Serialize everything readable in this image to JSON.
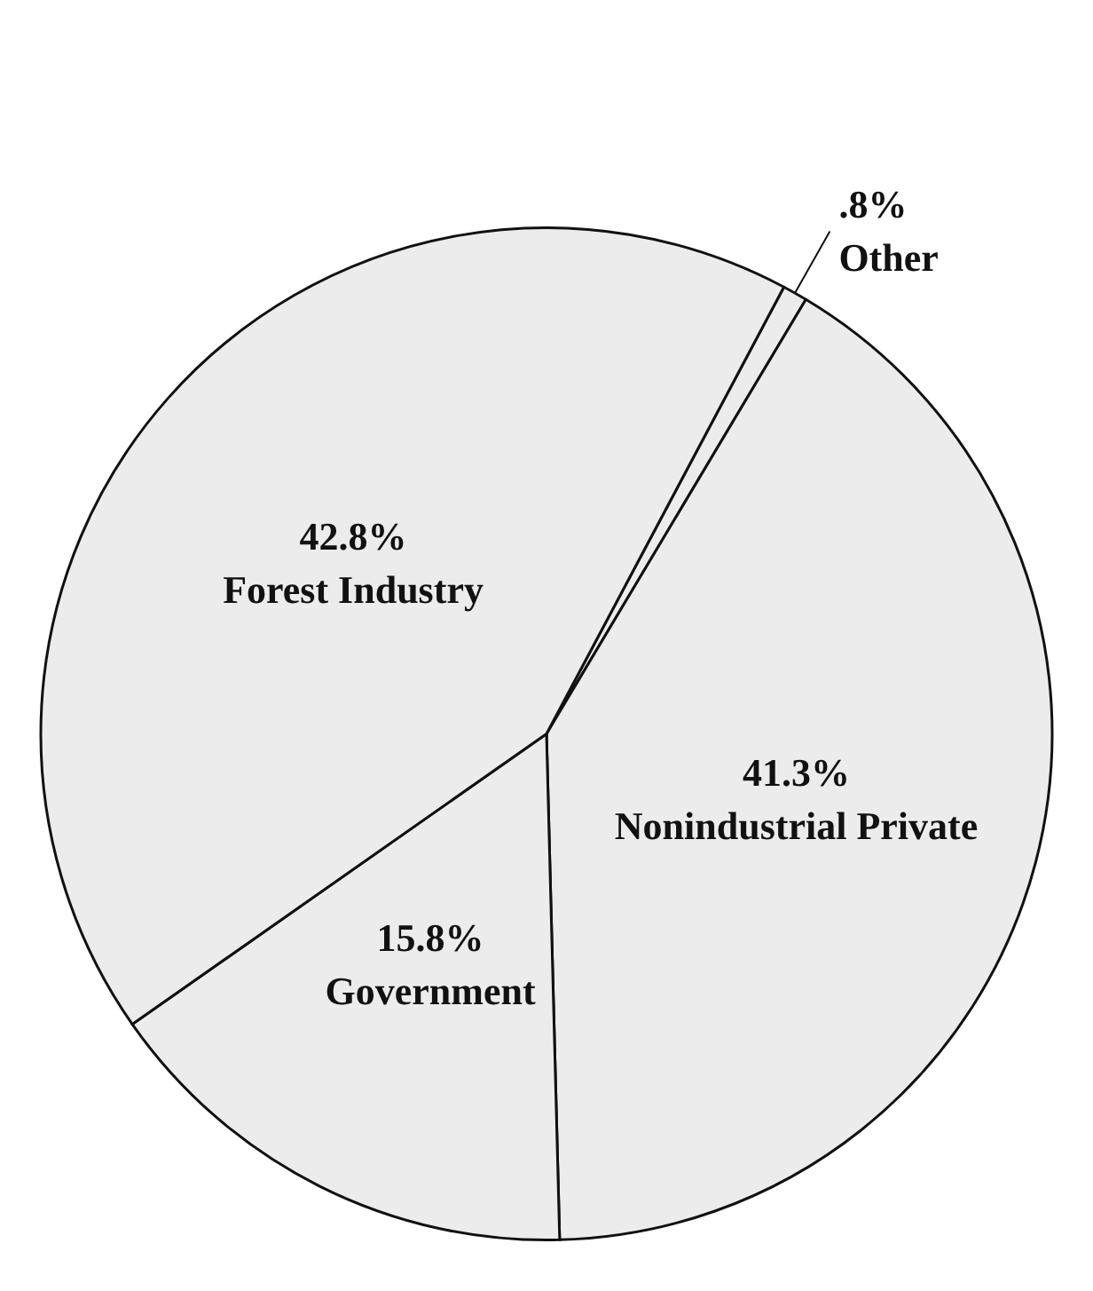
{
  "chart_data": {
    "type": "pie",
    "categories": [
      "Other",
      "Nonindustrial Private",
      "Government",
      "Forest Industry"
    ],
    "values": [
      0.8,
      41.3,
      15.8,
      42.8
    ],
    "value_labels": [
      ".8%",
      "41.3%",
      "15.8%",
      "42.8%"
    ],
    "colors": [
      "#ececec",
      "#ececec",
      "#ececec",
      "#ececec"
    ]
  }
}
